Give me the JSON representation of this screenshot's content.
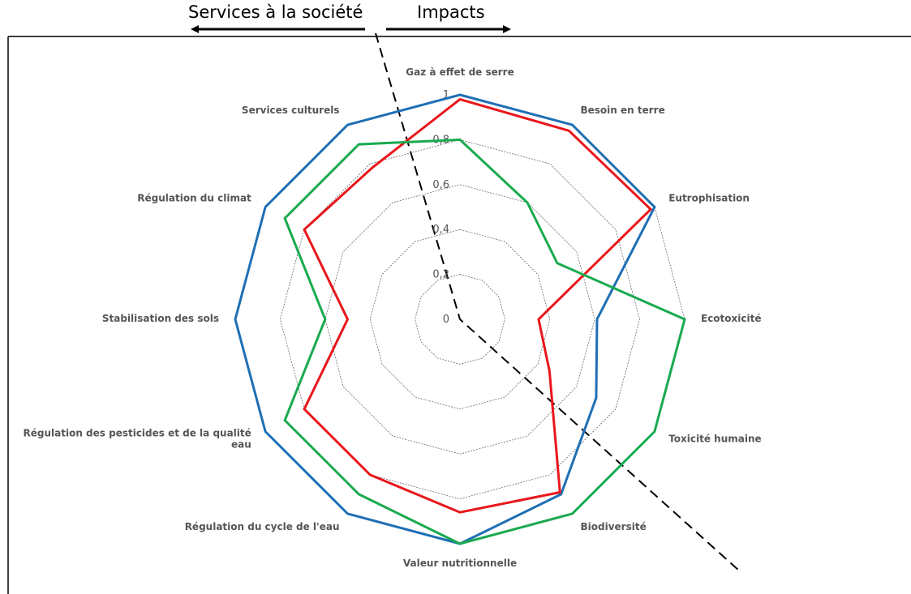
{
  "header": {
    "left_label": "Services à la société",
    "right_label": "Impacts"
  },
  "colors": {
    "series_blue": "#1f6fb4",
    "series_red": "#e8161b",
    "series_green": "#1aaa4f",
    "grid": "#555555",
    "labels": "#555555"
  },
  "chart_data": {
    "type": "radar",
    "title": "",
    "axes": [
      "Gaz à effet de serre",
      "Besoin en terre",
      "Eutrophisation",
      "Ecotoxicité",
      "Toxicité humaine",
      "Biodiversité",
      "Valeur nutritionnelle",
      "Régulation du cycle de l'eau",
      "Régulation des pesticides et de la qualité eau",
      "Stabilisation des sols",
      "Régulation du climat",
      "Services culturels"
    ],
    "ticks": [
      "0",
      "0,2",
      "0,4",
      "0,6",
      "0,8",
      "1"
    ],
    "rlim": [
      0,
      1
    ],
    "grid": true,
    "legend": "none",
    "divider_line": "dashed",
    "series": [
      {
        "color": "#1f6fb4",
        "values": [
          1.0,
          1.0,
          1.0,
          0.61,
          0.7,
          0.9,
          1.0,
          1.0,
          1.0,
          1.0,
          1.0,
          1.0
        ]
      },
      {
        "color": "#e8161b",
        "values": [
          0.98,
          0.97,
          0.98,
          0.35,
          0.46,
          0.89,
          0.86,
          0.8,
          0.8,
          0.5,
          0.8,
          0.78
        ]
      },
      {
        "color": "#1aaa4f",
        "values": [
          0.8,
          0.6,
          0.5,
          1.0,
          1.0,
          1.0,
          1.0,
          0.9,
          0.9,
          0.6,
          0.9,
          0.9
        ]
      }
    ]
  }
}
